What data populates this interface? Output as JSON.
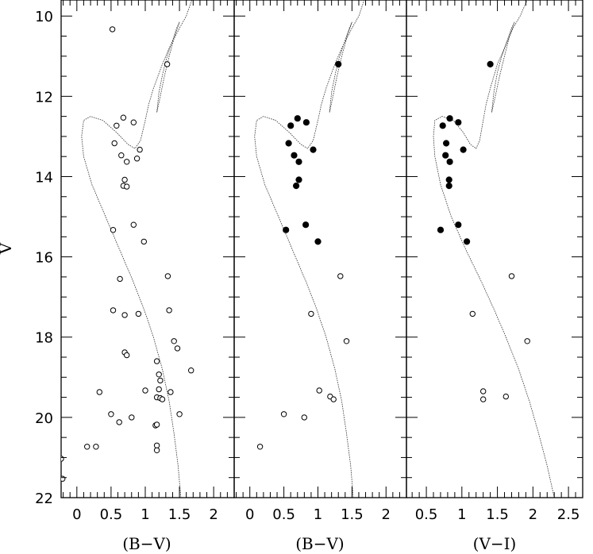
{
  "chart_data": [
    {
      "type": "scatter",
      "panel": "left",
      "xlabel": "(B−V)",
      "ylabel": "V",
      "xlim": [
        -0.23,
        2.3
      ],
      "ylim": [
        22,
        9.6
      ],
      "y_inverted": true,
      "x_ticks": [
        0,
        0.5,
        1,
        1.5,
        2
      ],
      "x_tick_labels": [
        "0",
        "0.5",
        "1",
        "1.5",
        "2"
      ],
      "y_ticks": [
        10,
        12,
        14,
        16,
        18,
        20,
        22
      ],
      "y_tick_labels": [
        "10",
        "12",
        "14",
        "16",
        "18",
        "20",
        "22"
      ],
      "series": [
        {
          "marker": "open-circle",
          "points": [
            [
              0.52,
              10.33
            ],
            [
              1.32,
              11.2
            ],
            [
              0.68,
              12.53
            ],
            [
              0.83,
              12.65
            ],
            [
              0.58,
              12.73
            ],
            [
              0.55,
              13.17
            ],
            [
              0.92,
              13.33
            ],
            [
              0.65,
              13.47
            ],
            [
              0.88,
              13.55
            ],
            [
              0.73,
              13.63
            ],
            [
              0.7,
              14.08
            ],
            [
              0.68,
              14.23
            ],
            [
              0.73,
              14.25
            ],
            [
              0.83,
              15.2
            ],
            [
              0.53,
              15.33
            ],
            [
              0.98,
              15.62
            ],
            [
              0.63,
              16.55
            ],
            [
              1.33,
              16.48
            ],
            [
              0.53,
              17.33
            ],
            [
              0.7,
              17.45
            ],
            [
              0.9,
              17.42
            ],
            [
              1.35,
              17.33
            ],
            [
              1.42,
              18.1
            ],
            [
              1.47,
              18.28
            ],
            [
              0.7,
              18.38
            ],
            [
              0.73,
              18.45
            ],
            [
              1.67,
              18.83
            ],
            [
              1.17,
              18.6
            ],
            [
              1.2,
              18.93
            ],
            [
              1.22,
              19.08
            ],
            [
              0.33,
              19.37
            ],
            [
              1.0,
              19.33
            ],
            [
              1.2,
              19.3
            ],
            [
              1.37,
              19.37
            ],
            [
              1.17,
              19.5
            ],
            [
              1.22,
              19.52
            ],
            [
              1.25,
              19.55
            ],
            [
              0.5,
              19.92
            ],
            [
              1.5,
              19.92
            ],
            [
              0.8,
              20.0
            ],
            [
              0.62,
              20.12
            ],
            [
              1.15,
              20.2
            ],
            [
              1.17,
              20.18
            ],
            [
              0.15,
              20.73
            ],
            [
              0.28,
              20.73
            ],
            [
              1.17,
              20.7
            ],
            [
              1.17,
              20.82
            ],
            [
              -0.23,
              21.03
            ],
            [
              -0.21,
              21.53
            ]
          ]
        }
      ]
    },
    {
      "type": "scatter",
      "panel": "middle",
      "xlabel": "(B−V)",
      "xlim": [
        -0.23,
        2.3
      ],
      "ylim": [
        22,
        9.6
      ],
      "y_inverted": true,
      "x_ticks": [
        0,
        0.5,
        1,
        1.5,
        2
      ],
      "x_tick_labels": [
        "0",
        "0.5",
        "1",
        "1.5",
        "2"
      ],
      "series": [
        {
          "marker": "filled-circle",
          "points": [
            [
              1.3,
              11.2
            ],
            [
              0.7,
              12.55
            ],
            [
              0.83,
              12.65
            ],
            [
              0.6,
              12.73
            ],
            [
              0.57,
              13.17
            ],
            [
              0.93,
              13.33
            ],
            [
              0.65,
              13.47
            ],
            [
              0.72,
              13.63
            ],
            [
              0.72,
              14.08
            ],
            [
              0.68,
              14.23
            ],
            [
              0.82,
              15.2
            ],
            [
              0.53,
              15.33
            ],
            [
              1.0,
              15.62
            ]
          ]
        },
        {
          "marker": "open-circle",
          "points": [
            [
              1.33,
              16.48
            ],
            [
              0.9,
              17.42
            ],
            [
              1.42,
              18.1
            ],
            [
              1.02,
              19.33
            ],
            [
              1.18,
              19.48
            ],
            [
              1.23,
              19.55
            ],
            [
              0.5,
              19.92
            ],
            [
              0.8,
              20.0
            ],
            [
              0.15,
              20.73
            ]
          ]
        }
      ]
    },
    {
      "type": "scatter",
      "panel": "right",
      "xlabel": "(V−I)",
      "xlim": [
        0.22,
        2.7
      ],
      "ylim": [
        22,
        9.6
      ],
      "y_inverted": true,
      "x_ticks": [
        0.5,
        1,
        1.5,
        2,
        2.5
      ],
      "x_tick_labels": [
        "0.5",
        "1",
        "1.5",
        "2",
        "2.5"
      ],
      "series": [
        {
          "marker": "filled-circle",
          "points": [
            [
              1.4,
              11.2
            ],
            [
              0.83,
              12.55
            ],
            [
              0.95,
              12.65
            ],
            [
              0.73,
              12.73
            ],
            [
              0.78,
              13.17
            ],
            [
              1.02,
              13.33
            ],
            [
              0.77,
              13.47
            ],
            [
              0.83,
              13.63
            ],
            [
              0.82,
              14.08
            ],
            [
              0.82,
              14.23
            ],
            [
              0.95,
              15.2
            ],
            [
              0.7,
              15.33
            ],
            [
              1.07,
              15.62
            ]
          ]
        },
        {
          "marker": "open-circle",
          "points": [
            [
              1.7,
              16.48
            ],
            [
              1.15,
              17.42
            ],
            [
              1.92,
              18.1
            ],
            [
              1.3,
              19.35
            ],
            [
              1.62,
              19.48
            ],
            [
              1.3,
              19.55
            ]
          ]
        }
      ]
    }
  ],
  "isochrone_bv": [
    [
      1.52,
      22.0
    ],
    [
      1.48,
      21.2
    ],
    [
      1.42,
      20.4
    ],
    [
      1.35,
      19.6
    ],
    [
      1.25,
      18.8
    ],
    [
      1.12,
      18.0
    ],
    [
      0.98,
      17.3
    ],
    [
      0.82,
      16.6
    ],
    [
      0.62,
      15.8
    ],
    [
      0.42,
      15.0
    ],
    [
      0.22,
      14.2
    ],
    [
      0.1,
      13.5
    ],
    [
      0.07,
      13.0
    ],
    [
      0.1,
      12.6
    ],
    [
      0.2,
      12.5
    ],
    [
      0.38,
      12.6
    ],
    [
      0.58,
      12.9
    ],
    [
      0.75,
      13.2
    ],
    [
      0.85,
      13.3
    ],
    [
      0.93,
      13.1
    ],
    [
      1.0,
      12.6
    ],
    [
      1.05,
      12.2
    ],
    [
      1.12,
      11.8
    ],
    [
      1.25,
      11.2
    ],
    [
      1.35,
      10.8
    ],
    [
      1.5,
      10.3
    ],
    [
      1.6,
      10.0
    ],
    [
      1.68,
      9.6
    ]
  ],
  "isochrone_vi": [
    [
      2.3,
      22.0
    ],
    [
      2.2,
      21.2
    ],
    [
      2.08,
      20.4
    ],
    [
      1.95,
      19.6
    ],
    [
      1.8,
      18.8
    ],
    [
      1.62,
      18.0
    ],
    [
      1.45,
      17.3
    ],
    [
      1.27,
      16.6
    ],
    [
      1.05,
      15.8
    ],
    [
      0.85,
      15.0
    ],
    [
      0.7,
      14.2
    ],
    [
      0.62,
      13.5
    ],
    [
      0.6,
      13.0
    ],
    [
      0.62,
      12.6
    ],
    [
      0.72,
      12.5
    ],
    [
      0.88,
      12.6
    ],
    [
      1.02,
      12.9
    ],
    [
      1.12,
      13.2
    ],
    [
      1.2,
      13.3
    ],
    [
      1.25,
      13.1
    ],
    [
      1.3,
      12.6
    ],
    [
      1.34,
      12.2
    ],
    [
      1.4,
      11.8
    ],
    [
      1.5,
      11.2
    ],
    [
      1.6,
      10.8
    ],
    [
      1.72,
      10.3
    ],
    [
      1.82,
      10.0
    ],
    [
      1.92,
      9.6
    ]
  ],
  "giant_branch_bv": [
    [
      1.17,
      12.4
    ],
    [
      1.2,
      11.9
    ],
    [
      1.26,
      11.4
    ],
    [
      1.32,
      11.0
    ],
    [
      1.4,
      10.6
    ],
    [
      1.46,
      10.3
    ],
    [
      1.5,
      10.15
    ],
    [
      1.43,
      10.5
    ],
    [
      1.35,
      11.0
    ],
    [
      1.28,
      11.5
    ],
    [
      1.22,
      12.0
    ],
    [
      1.17,
      12.4
    ]
  ],
  "giant_branch_vi": [
    [
      1.42,
      12.4
    ],
    [
      1.45,
      11.9
    ],
    [
      1.5,
      11.4
    ],
    [
      1.56,
      11.0
    ],
    [
      1.64,
      10.6
    ],
    [
      1.7,
      10.3
    ],
    [
      1.74,
      10.15
    ],
    [
      1.67,
      10.5
    ],
    [
      1.6,
      11.0
    ],
    [
      1.53,
      11.5
    ],
    [
      1.47,
      12.0
    ],
    [
      1.42,
      12.4
    ]
  ]
}
